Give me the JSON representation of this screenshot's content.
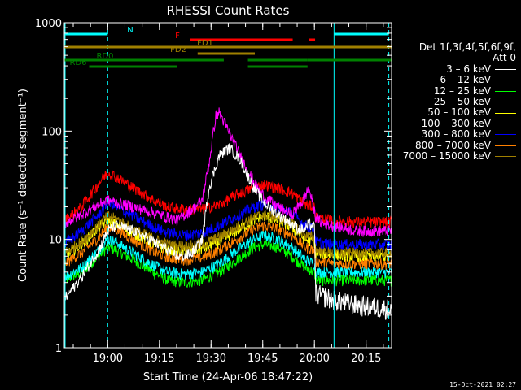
{
  "chart_data": {
    "type": "line",
    "title": "RHESSI Count Rates",
    "xlabel": "Start Time (24-Apr-06 18:47:22)",
    "ylabel": "Count Rate (s⁻¹ detector segment⁻¹)",
    "yscale": "log",
    "ylim": [
      1,
      1000
    ],
    "xlim_minutes_after_start": [
      0,
      95
    ],
    "x_tick_labels": [
      "19:00",
      "19:15",
      "19:30",
      "19:45",
      "20:00",
      "20:15"
    ],
    "x_tick_minutes_after_start": [
      12.6,
      27.6,
      42.6,
      57.6,
      72.6,
      87.6
    ],
    "y_tick_labels": [
      "1",
      "10",
      "100",
      "1000"
    ],
    "y_tick_values": [
      1,
      10,
      100,
      1000
    ],
    "legend_header": [
      "Det 1f,3f,4f,5f,6f,9f,",
      "Att 0"
    ],
    "series": [
      {
        "name": "3 – 6 keV",
        "color": "#ffffff",
        "x": [
          0,
          5,
          10,
          12.6,
          15,
          20,
          25,
          30,
          33,
          35,
          37,
          40,
          42,
          45,
          48,
          51,
          55,
          58,
          62,
          66,
          68,
          70,
          71,
          72.6,
          73,
          78,
          85,
          90,
          95
        ],
        "y": [
          2.8,
          4.5,
          8,
          12,
          13.5,
          12,
          10,
          8,
          7,
          7,
          7.5,
          10,
          30,
          60,
          70,
          55,
          30,
          22,
          17,
          14,
          12.5,
          12.5,
          14,
          13,
          3.2,
          2.8,
          2.5,
          2.4,
          2.3
        ]
      },
      {
        "name": "6 – 12 keV",
        "color": "#ff00ff",
        "x": [
          0,
          5,
          10,
          12.6,
          15,
          20,
          25,
          30,
          33,
          35,
          38,
          40,
          42,
          44,
          45,
          47,
          50,
          53,
          56,
          58,
          62,
          66,
          69,
          71,
          73,
          75,
          80,
          85,
          90,
          95
        ],
        "y": [
          14,
          17,
          21,
          23,
          22,
          20,
          18,
          16,
          15,
          17,
          20,
          23,
          50,
          140,
          150,
          110,
          70,
          45,
          30,
          25,
          20,
          17,
          22,
          30,
          16,
          14,
          13,
          12,
          12,
          12
        ]
      },
      {
        "name": "12 – 25 keV",
        "color": "#00ff00",
        "x": [
          0,
          5,
          10,
          12.6,
          15,
          20,
          25,
          30,
          35,
          40,
          45,
          50,
          55,
          58,
          62,
          66,
          70,
          72.6,
          73,
          78,
          85,
          90,
          95
        ],
        "y": [
          4.2,
          5,
          7,
          8.5,
          8,
          6.5,
          5.2,
          4.2,
          4,
          4.2,
          5,
          6.5,
          8.5,
          9,
          8.5,
          7,
          5.5,
          5,
          4.2,
          4.2,
          4.2,
          4.2,
          4.2
        ]
      },
      {
        "name": "25 – 50 keV",
        "color": "#00ffff",
        "x": [
          0,
          5,
          10,
          12.6,
          15,
          20,
          25,
          30,
          35,
          40,
          45,
          50,
          55,
          58,
          62,
          66,
          70,
          72.6,
          73,
          78,
          85,
          90,
          95
        ],
        "y": [
          4.5,
          5.5,
          8,
          10,
          9.5,
          7.5,
          6,
          5,
          4.8,
          5,
          6,
          8,
          10,
          11,
          10,
          8.5,
          6.5,
          6,
          5,
          5,
          5,
          5,
          5
        ]
      },
      {
        "name": "50 – 100 keV",
        "color": "#ffff00",
        "x": [
          0,
          5,
          10,
          12.6,
          15,
          20,
          25,
          30,
          35,
          40,
          45,
          50,
          55,
          58,
          62,
          66,
          70,
          72.6,
          73,
          78,
          85,
          90,
          95
        ],
        "y": [
          7,
          9,
          13,
          15,
          14,
          11.5,
          9.5,
          8,
          7.8,
          8.2,
          9.5,
          12,
          15,
          16.5,
          15,
          13,
          10,
          9.5,
          7.5,
          7.2,
          7,
          7,
          7
        ]
      },
      {
        "name": "100 – 300 keV",
        "color": "#ff0000",
        "x": [
          0,
          5,
          10,
          12.6,
          15,
          20,
          25,
          30,
          35,
          40,
          45,
          50,
          55,
          58,
          62,
          66,
          70,
          72.6,
          73,
          78,
          85,
          90,
          95
        ],
        "y": [
          15,
          20,
          33,
          42,
          38,
          30,
          24,
          20,
          19,
          19,
          21,
          26,
          30,
          32,
          30,
          27,
          21,
          20,
          16,
          15,
          14.5,
          14.5,
          14.5
        ]
      },
      {
        "name": "300 – 800 keV",
        "color": "#0000ff",
        "x": [
          0,
          5,
          10,
          12.6,
          15,
          20,
          25,
          30,
          35,
          40,
          45,
          50,
          55,
          58,
          62,
          66,
          70,
          72.6,
          73,
          78,
          85,
          90,
          95
        ],
        "y": [
          9,
          12,
          17,
          22,
          20,
          16.5,
          13.5,
          11.5,
          11,
          11.5,
          13.5,
          16.5,
          20,
          21,
          20,
          17.5,
          13.5,
          12.5,
          9.5,
          9,
          9,
          9,
          9
        ]
      },
      {
        "name": "800 – 7000 keV",
        "color": "#ff8000",
        "x": [
          0,
          5,
          10,
          12.6,
          15,
          20,
          25,
          30,
          35,
          40,
          45,
          50,
          55,
          58,
          62,
          66,
          70,
          72.6,
          73,
          78,
          85,
          90,
          95
        ],
        "y": [
          6,
          7.5,
          10.5,
          13,
          12.5,
          10,
          8,
          6.8,
          6.5,
          6.8,
          8,
          10,
          12.5,
          13.5,
          12.5,
          11,
          8.5,
          8,
          6.3,
          6,
          6,
          6,
          6
        ]
      },
      {
        "name": "7000 – 15000 keV",
        "color": "#a08000",
        "x": [
          0,
          5,
          10,
          12.6,
          15,
          20,
          25,
          30,
          35,
          40,
          45,
          50,
          55,
          58,
          62,
          66,
          70,
          72.6,
          73,
          78,
          85,
          90,
          95
        ],
        "y": [
          7.5,
          9.5,
          13.5,
          16.5,
          15.5,
          12.5,
          10.5,
          9,
          8.7,
          9,
          10.5,
          13,
          16,
          17,
          16,
          14,
          11,
          10.5,
          8,
          7.5,
          7.5,
          7.5,
          7.5
        ]
      }
    ],
    "vertical_markers": [
      {
        "x": 12.6,
        "style": "dashed",
        "color": "#00ffff"
      },
      {
        "x": 78.3,
        "style": "solid",
        "color": "#00ffff"
      },
      {
        "x": 94.2,
        "style": "dashed",
        "color": "#00ffff"
      }
    ],
    "flag_bars": [
      {
        "label": "N",
        "color": "#00ffff",
        "segments": [
          [
            0,
            12.6
          ],
          [
            78.3,
            94.2
          ]
        ]
      },
      {
        "label": "F",
        "color": "#ff0000",
        "segments": [
          [
            36.5,
            66.3
          ],
          [
            71,
            72.8
          ]
        ]
      },
      {
        "label": "FD1",
        "color": "#a08000",
        "segments": [
          [
            0,
            95
          ]
        ]
      },
      {
        "label": "FD2",
        "color": "#a08000",
        "segments": [
          [
            38.7,
            55.3
          ]
        ]
      },
      {
        "label": "RD0",
        "color": "#008000",
        "segments": [
          [
            0,
            32.8
          ],
          [
            32.8,
            46.3
          ],
          [
            53.3,
            70.6
          ],
          [
            70.6,
            95
          ]
        ]
      },
      {
        "label": "RD6",
        "color": "#008000",
        "segments": [
          [
            7.2,
            32.8
          ],
          [
            53.3,
            70.6
          ]
        ]
      }
    ]
  },
  "footer_date": "15-Oct-2021 02:27"
}
